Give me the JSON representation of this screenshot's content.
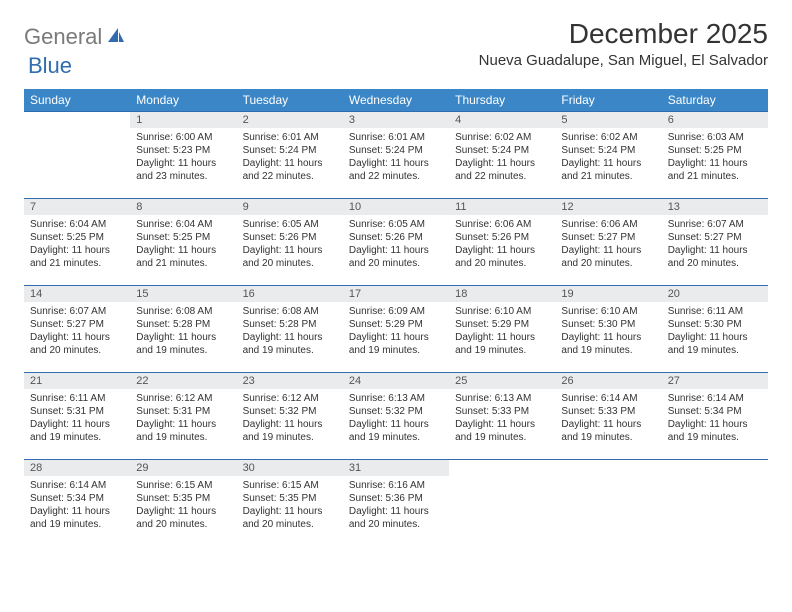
{
  "logo": {
    "gray": "General",
    "blue": "Blue"
  },
  "header": {
    "month_title": "December 2025",
    "location": "Nueva Guadalupe, San Miguel, El Salvador"
  },
  "colors": {
    "header_bg": "#3b86c6",
    "header_text": "#ffffff",
    "daynum_bg": "#e9ebed",
    "row_divider": "#2f6db0",
    "logo_gray": "#7a7a7a",
    "logo_blue": "#2f6db0"
  },
  "weekdays": [
    "Sunday",
    "Monday",
    "Tuesday",
    "Wednesday",
    "Thursday",
    "Friday",
    "Saturday"
  ],
  "weeks": [
    [
      {
        "day": "",
        "sunrise": "",
        "sunset": "",
        "daylight": ""
      },
      {
        "day": "1",
        "sunrise": "Sunrise: 6:00 AM",
        "sunset": "Sunset: 5:23 PM",
        "daylight": "Daylight: 11 hours and 23 minutes."
      },
      {
        "day": "2",
        "sunrise": "Sunrise: 6:01 AM",
        "sunset": "Sunset: 5:24 PM",
        "daylight": "Daylight: 11 hours and 22 minutes."
      },
      {
        "day": "3",
        "sunrise": "Sunrise: 6:01 AM",
        "sunset": "Sunset: 5:24 PM",
        "daylight": "Daylight: 11 hours and 22 minutes."
      },
      {
        "day": "4",
        "sunrise": "Sunrise: 6:02 AM",
        "sunset": "Sunset: 5:24 PM",
        "daylight": "Daylight: 11 hours and 22 minutes."
      },
      {
        "day": "5",
        "sunrise": "Sunrise: 6:02 AM",
        "sunset": "Sunset: 5:24 PM",
        "daylight": "Daylight: 11 hours and 21 minutes."
      },
      {
        "day": "6",
        "sunrise": "Sunrise: 6:03 AM",
        "sunset": "Sunset: 5:25 PM",
        "daylight": "Daylight: 11 hours and 21 minutes."
      }
    ],
    [
      {
        "day": "7",
        "sunrise": "Sunrise: 6:04 AM",
        "sunset": "Sunset: 5:25 PM",
        "daylight": "Daylight: 11 hours and 21 minutes."
      },
      {
        "day": "8",
        "sunrise": "Sunrise: 6:04 AM",
        "sunset": "Sunset: 5:25 PM",
        "daylight": "Daylight: 11 hours and 21 minutes."
      },
      {
        "day": "9",
        "sunrise": "Sunrise: 6:05 AM",
        "sunset": "Sunset: 5:26 PM",
        "daylight": "Daylight: 11 hours and 20 minutes."
      },
      {
        "day": "10",
        "sunrise": "Sunrise: 6:05 AM",
        "sunset": "Sunset: 5:26 PM",
        "daylight": "Daylight: 11 hours and 20 minutes."
      },
      {
        "day": "11",
        "sunrise": "Sunrise: 6:06 AM",
        "sunset": "Sunset: 5:26 PM",
        "daylight": "Daylight: 11 hours and 20 minutes."
      },
      {
        "day": "12",
        "sunrise": "Sunrise: 6:06 AM",
        "sunset": "Sunset: 5:27 PM",
        "daylight": "Daylight: 11 hours and 20 minutes."
      },
      {
        "day": "13",
        "sunrise": "Sunrise: 6:07 AM",
        "sunset": "Sunset: 5:27 PM",
        "daylight": "Daylight: 11 hours and 20 minutes."
      }
    ],
    [
      {
        "day": "14",
        "sunrise": "Sunrise: 6:07 AM",
        "sunset": "Sunset: 5:27 PM",
        "daylight": "Daylight: 11 hours and 20 minutes."
      },
      {
        "day": "15",
        "sunrise": "Sunrise: 6:08 AM",
        "sunset": "Sunset: 5:28 PM",
        "daylight": "Daylight: 11 hours and 19 minutes."
      },
      {
        "day": "16",
        "sunrise": "Sunrise: 6:08 AM",
        "sunset": "Sunset: 5:28 PM",
        "daylight": "Daylight: 11 hours and 19 minutes."
      },
      {
        "day": "17",
        "sunrise": "Sunrise: 6:09 AM",
        "sunset": "Sunset: 5:29 PM",
        "daylight": "Daylight: 11 hours and 19 minutes."
      },
      {
        "day": "18",
        "sunrise": "Sunrise: 6:10 AM",
        "sunset": "Sunset: 5:29 PM",
        "daylight": "Daylight: 11 hours and 19 minutes."
      },
      {
        "day": "19",
        "sunrise": "Sunrise: 6:10 AM",
        "sunset": "Sunset: 5:30 PM",
        "daylight": "Daylight: 11 hours and 19 minutes."
      },
      {
        "day": "20",
        "sunrise": "Sunrise: 6:11 AM",
        "sunset": "Sunset: 5:30 PM",
        "daylight": "Daylight: 11 hours and 19 minutes."
      }
    ],
    [
      {
        "day": "21",
        "sunrise": "Sunrise: 6:11 AM",
        "sunset": "Sunset: 5:31 PM",
        "daylight": "Daylight: 11 hours and 19 minutes."
      },
      {
        "day": "22",
        "sunrise": "Sunrise: 6:12 AM",
        "sunset": "Sunset: 5:31 PM",
        "daylight": "Daylight: 11 hours and 19 minutes."
      },
      {
        "day": "23",
        "sunrise": "Sunrise: 6:12 AM",
        "sunset": "Sunset: 5:32 PM",
        "daylight": "Daylight: 11 hours and 19 minutes."
      },
      {
        "day": "24",
        "sunrise": "Sunrise: 6:13 AM",
        "sunset": "Sunset: 5:32 PM",
        "daylight": "Daylight: 11 hours and 19 minutes."
      },
      {
        "day": "25",
        "sunrise": "Sunrise: 6:13 AM",
        "sunset": "Sunset: 5:33 PM",
        "daylight": "Daylight: 11 hours and 19 minutes."
      },
      {
        "day": "26",
        "sunrise": "Sunrise: 6:14 AM",
        "sunset": "Sunset: 5:33 PM",
        "daylight": "Daylight: 11 hours and 19 minutes."
      },
      {
        "day": "27",
        "sunrise": "Sunrise: 6:14 AM",
        "sunset": "Sunset: 5:34 PM",
        "daylight": "Daylight: 11 hours and 19 minutes."
      }
    ],
    [
      {
        "day": "28",
        "sunrise": "Sunrise: 6:14 AM",
        "sunset": "Sunset: 5:34 PM",
        "daylight": "Daylight: 11 hours and 19 minutes."
      },
      {
        "day": "29",
        "sunrise": "Sunrise: 6:15 AM",
        "sunset": "Sunset: 5:35 PM",
        "daylight": "Daylight: 11 hours and 20 minutes."
      },
      {
        "day": "30",
        "sunrise": "Sunrise: 6:15 AM",
        "sunset": "Sunset: 5:35 PM",
        "daylight": "Daylight: 11 hours and 20 minutes."
      },
      {
        "day": "31",
        "sunrise": "Sunrise: 6:16 AM",
        "sunset": "Sunset: 5:36 PM",
        "daylight": "Daylight: 11 hours and 20 minutes."
      },
      {
        "day": "",
        "sunrise": "",
        "sunset": "",
        "daylight": ""
      },
      {
        "day": "",
        "sunrise": "",
        "sunset": "",
        "daylight": ""
      },
      {
        "day": "",
        "sunrise": "",
        "sunset": "",
        "daylight": ""
      }
    ]
  ]
}
